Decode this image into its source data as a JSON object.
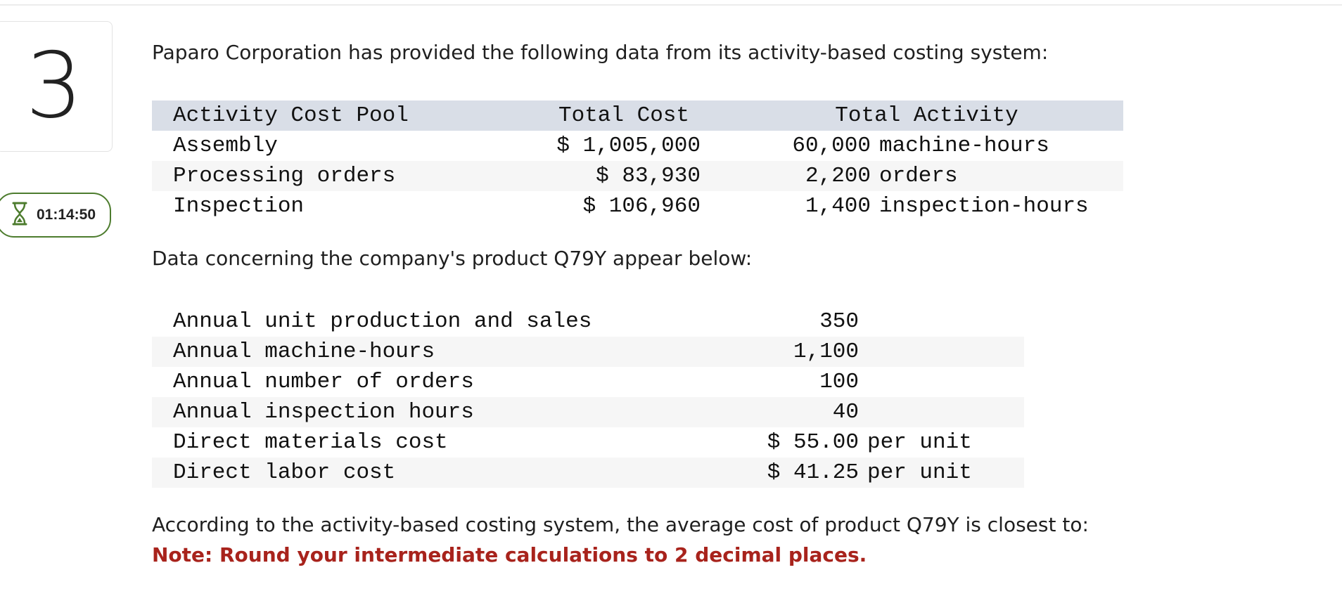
{
  "question": {
    "number": "3"
  },
  "timer": {
    "time": "01:14:50",
    "icon": "hourglass-icon"
  },
  "intro_text": "Paparo Corporation has provided the following data from its activity-based costing system:",
  "activity_table": {
    "headers": {
      "pool": "Activity Cost Pool",
      "total_cost": "Total Cost",
      "total_activity": "Total Activity"
    },
    "rows": [
      {
        "pool": "Assembly",
        "cost": "$ 1,005,000",
        "quantity": "60,000",
        "unit": "machine-hours"
      },
      {
        "pool": "Processing orders",
        "cost": "$ 83,930",
        "quantity": "2,200",
        "unit": "orders"
      },
      {
        "pool": "Inspection",
        "cost": "$ 106,960",
        "quantity": "1,400",
        "unit": "inspection-hours"
      }
    ]
  },
  "product_text": "Data concerning the company's product Q79Y appear below:",
  "product_table": {
    "rows": [
      {
        "label": "Annual unit production and sales",
        "value": "350",
        "unit": ""
      },
      {
        "label": "Annual machine-hours",
        "value": "1,100",
        "unit": ""
      },
      {
        "label": "Annual number of orders",
        "value": "100",
        "unit": ""
      },
      {
        "label": "Annual inspection hours",
        "value": "40",
        "unit": ""
      },
      {
        "label": "Direct materials cost",
        "value": "$ 55.00",
        "unit": "per unit"
      },
      {
        "label": "Direct labor cost",
        "value": "$ 41.25",
        "unit": "per unit"
      }
    ]
  },
  "question_text": "According to the activity-based costing system, the average cost of product Q79Y is closest to:",
  "note_text": "Note: Round your intermediate calculations to 2 decimal places.",
  "colors": {
    "note": "#a8231c",
    "timer_border": "#4d7c2e",
    "header_bg": "#d9dee7",
    "stripe_bg": "#f6f6f6"
  }
}
